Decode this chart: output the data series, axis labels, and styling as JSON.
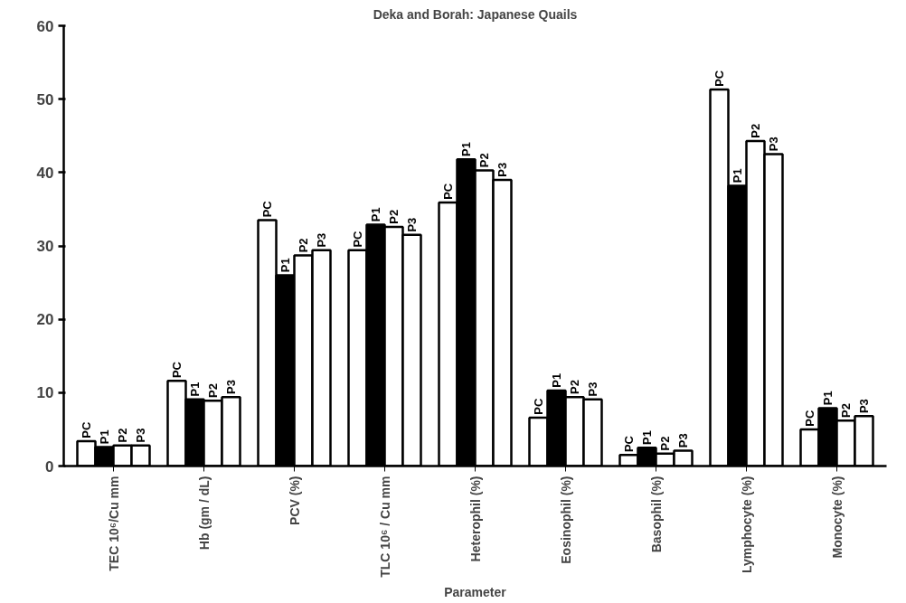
{
  "chart_data": {
    "type": "bar",
    "title": "Deka and Borah: Japanese Quails",
    "xlabel": "Parameter",
    "categories": [
      "TEC 10⁶/Cu mm",
      "Hb (gm / dL)",
      "PCV (%)",
      "TLC 10⁶ / Cu mm",
      "Heterophil (%)",
      "Eosinophil (%)",
      "Basophil (%)",
      "Lymphocyte (%)",
      "Monocyte (%)"
    ],
    "series": [
      {
        "name": "PC",
        "color": "#ffffff",
        "values": [
          3.4,
          11.6,
          33.5,
          29.4,
          35.9,
          6.6,
          1.5,
          51.3,
          5.0
        ]
      },
      {
        "name": "P1",
        "color": "#000000",
        "values": [
          2.6,
          9.1,
          26.0,
          32.9,
          41.8,
          10.3,
          2.5,
          38.2,
          7.9
        ]
      },
      {
        "name": "P2",
        "color": "#ffffff",
        "values": [
          2.8,
          8.9,
          28.7,
          32.6,
          40.3,
          9.4,
          1.7,
          44.3,
          6.2
        ]
      },
      {
        "name": "P3",
        "color": "#ffffff",
        "values": [
          2.8,
          9.4,
          29.4,
          31.5,
          39.0,
          9.1,
          2.1,
          42.5,
          6.8
        ]
      }
    ],
    "ylim": [
      0,
      60
    ],
    "yticks": [
      0,
      10,
      20,
      30,
      40,
      50,
      60
    ],
    "grid": false
  }
}
